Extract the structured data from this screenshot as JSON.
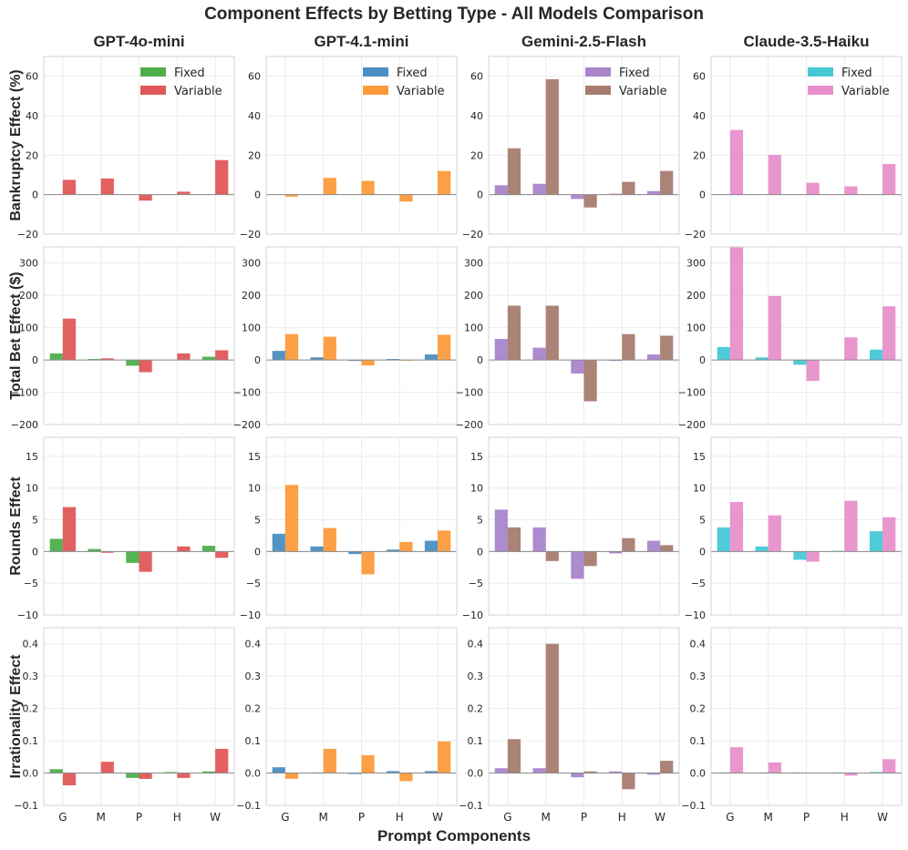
{
  "figure": {
    "title": "Component Effects by Betting Type - All Models Comparison",
    "xlabel": "Prompt Components"
  },
  "chart_data": {
    "type": "bar",
    "categories": [
      "G",
      "M",
      "P",
      "H",
      "W"
    ],
    "models": [
      {
        "name": "GPT-4o-mini",
        "colors": {
          "Fixed": "#4daf4a",
          "Variable": "#e15759"
        }
      },
      {
        "name": "GPT-4.1-mini",
        "colors": {
          "Fixed": "#4a8ec2",
          "Variable": "#fd9a3a"
        }
      },
      {
        "name": "Gemini-2.5-Flash",
        "colors": {
          "Fixed": "#a985cc",
          "Variable": "#a87c70"
        }
      },
      {
        "name": "Claude-3.5-Haiku",
        "colors": {
          "Fixed": "#47c8d7",
          "Variable": "#e88fcb"
        }
      }
    ],
    "series_names": [
      "Fixed",
      "Variable"
    ],
    "metrics": [
      {
        "ylabel": "Bankruptcy Effect (%)",
        "ylim": [
          -20,
          70
        ],
        "yticks": [
          -20,
          0,
          20,
          40,
          60
        ],
        "values": [
          {
            "Fixed": [
              0,
              0,
              0,
              0,
              0
            ],
            "Variable": [
              7.5,
              8.2,
              -3,
              1.5,
              17.5
            ]
          },
          {
            "Fixed": [
              0,
              0,
              0,
              0,
              0
            ],
            "Variable": [
              -1,
              8.5,
              7,
              -3.5,
              12
            ]
          },
          {
            "Fixed": [
              4.8,
              5.5,
              -2.2,
              0.5,
              1.8
            ],
            "Variable": [
              23.5,
              58.5,
              -6.5,
              6.5,
              12
            ]
          },
          {
            "Fixed": [
              0,
              0,
              0,
              0,
              0
            ],
            "Variable": [
              32.8,
              20.2,
              6,
              4.2,
              15.5
            ]
          }
        ]
      },
      {
        "ylabel": "Total Bet Effect ($)",
        "ylim": [
          -200,
          350
        ],
        "yticks": [
          -200,
          -100,
          0,
          100,
          200,
          300
        ],
        "values": [
          {
            "Fixed": [
              20,
              3,
              -18,
              0,
              10
            ],
            "Variable": [
              128,
              5,
              -38,
              20,
              30
            ]
          },
          {
            "Fixed": [
              28,
              8,
              -3,
              3,
              17
            ],
            "Variable": [
              80,
              72,
              -17,
              -2,
              78
            ]
          },
          {
            "Fixed": [
              65,
              38,
              -42,
              -3,
              17
            ],
            "Variable": [
              168,
              168,
              -128,
              80,
              75
            ]
          },
          {
            "Fixed": [
              40,
              8,
              -15,
              0,
              32
            ],
            "Variable": [
              350,
              198,
              -65,
              70,
              166
            ]
          }
        ]
      },
      {
        "ylabel": "Rounds Effect",
        "ylim": [
          -10,
          18
        ],
        "yticks": [
          -10,
          -5,
          0,
          5,
          10,
          15
        ],
        "values": [
          {
            "Fixed": [
              2,
              0.4,
              -1.8,
              0,
              0.9
            ],
            "Variable": [
              7,
              -0.2,
              -3.2,
              0.8,
              -1
            ]
          },
          {
            "Fixed": [
              2.8,
              0.8,
              -0.4,
              0.3,
              1.7
            ],
            "Variable": [
              10.5,
              3.7,
              -3.6,
              1.5,
              3.3
            ]
          },
          {
            "Fixed": [
              6.6,
              3.8,
              -4.3,
              -0.3,
              1.7
            ],
            "Variable": [
              3.8,
              -1.5,
              -2.3,
              2.1,
              1
            ]
          },
          {
            "Fixed": [
              3.8,
              0.8,
              -1.3,
              0.1,
              3.2
            ],
            "Variable": [
              7.8,
              5.7,
              -1.6,
              8,
              5.4
            ]
          }
        ]
      },
      {
        "ylabel": "Irrationality Effect",
        "ylim": [
          -0.1,
          0.45
        ],
        "yticks": [
          -0.1,
          0.0,
          0.1,
          0.2,
          0.3,
          0.4
        ],
        "values": [
          {
            "Fixed": [
              0.012,
              0,
              -0.015,
              0.003,
              0.005
            ],
            "Variable": [
              -0.038,
              0.035,
              -0.018,
              -0.015,
              0.075
            ]
          },
          {
            "Fixed": [
              0.018,
              0.002,
              -0.003,
              0.006,
              0.006
            ],
            "Variable": [
              -0.018,
              0.075,
              0.055,
              -0.025,
              0.098
            ]
          },
          {
            "Fixed": [
              0.015,
              0.015,
              -0.013,
              0.005,
              -0.005
            ],
            "Variable": [
              0.105,
              0.4,
              0.005,
              -0.05,
              0.038
            ]
          },
          {
            "Fixed": [
              0.002,
              0.002,
              0.002,
              0.002,
              0.003
            ],
            "Variable": [
              0.08,
              0.033,
              0,
              -0.008,
              0.043
            ]
          }
        ]
      }
    ]
  }
}
